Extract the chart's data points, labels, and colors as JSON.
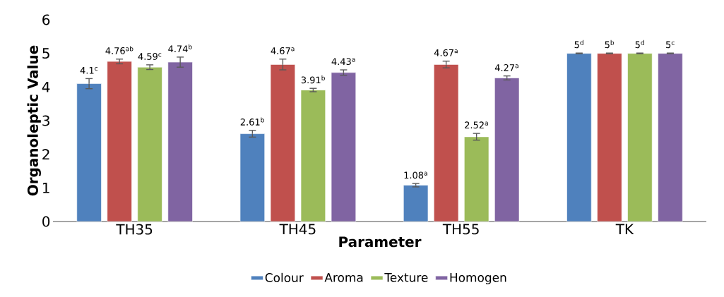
{
  "chart_data": {
    "type": "bar",
    "xlabel": "Parameter",
    "ylabel": "Organoleptic Value",
    "categories": [
      "TH35",
      "TH45",
      "TH55",
      "TK"
    ],
    "series": [
      {
        "name": "Colour",
        "color": "#4f81bd",
        "values": [
          4.1,
          2.61,
          1.08,
          5
        ],
        "errors": [
          0.15,
          0.1,
          0.05,
          0.01
        ],
        "value_labels": [
          "4.1$^{c}$",
          "2.61$^{b}$",
          "1.08$^{a}$",
          "5$^{d}$"
        ]
      },
      {
        "name": "Aroma",
        "color": "#c0504d",
        "values": [
          4.76,
          4.67,
          4.67,
          5
        ],
        "errors": [
          0.07,
          0.16,
          0.1,
          0.01
        ],
        "value_labels": [
          "4.76$^{ab}$",
          "4.67$^{a}$",
          "4.67$^{a}$",
          "5$^{b}$"
        ]
      },
      {
        "name": "Texture",
        "color": "#9bbb59",
        "values": [
          4.59,
          3.91,
          2.52,
          5
        ],
        "errors": [
          0.07,
          0.05,
          0.1,
          0.01
        ],
        "value_labels": [
          "4.59$^{c}$",
          "3.91$^{b}$",
          "2.52$^{a}$",
          "5$^{d}$"
        ]
      },
      {
        "name": "Homogen",
        "color": "#8064a2",
        "values": [
          4.74,
          4.43,
          4.27,
          5
        ],
        "errors": [
          0.15,
          0.08,
          0.06,
          0.01
        ],
        "value_labels": [
          "4.74$^{b}$",
          "4.43$^{a}$",
          "4.27$^{a}$",
          "5$^{c}$"
        ]
      }
    ],
    "ylim": [
      0,
      6
    ],
    "yticks": [
      0,
      1,
      2,
      3,
      4,
      5,
      6
    ],
    "grid": false,
    "legend": "bottom"
  }
}
